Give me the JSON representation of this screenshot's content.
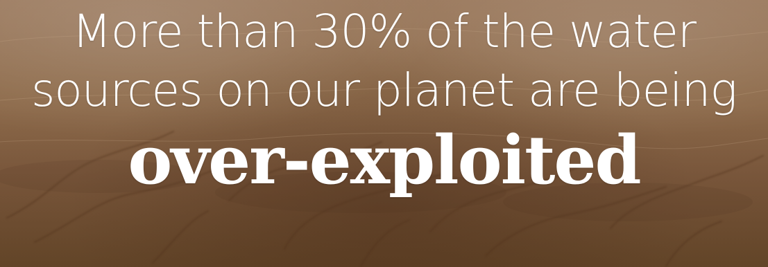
{
  "headline": {
    "line1": "More than 30% of the water",
    "line2": "sources on our planet are being",
    "emphasis": "over-exploited"
  },
  "background": {
    "subject": "aerial view of dry eroded terrain",
    "colors": [
      "#a48163",
      "#93704f",
      "#815d40",
      "#70502f"
    ]
  }
}
